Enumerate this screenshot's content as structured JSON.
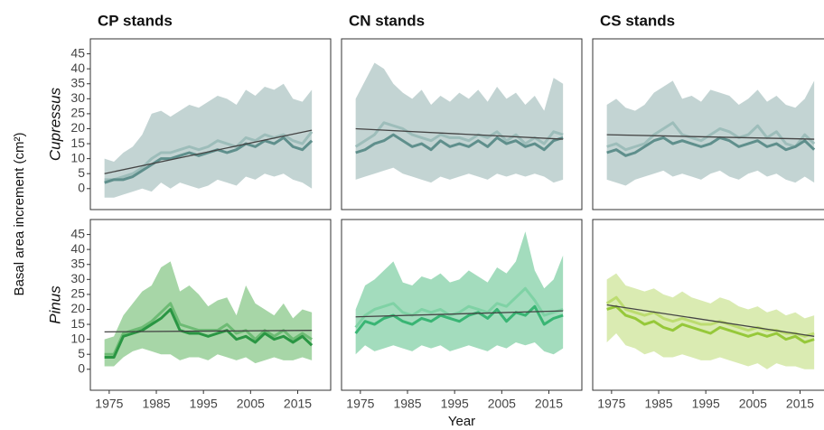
{
  "ylabel": "Basal area increment (cm²)",
  "xlabel": "Year",
  "chart_data": [
    {
      "type": "line",
      "title": "CP stands",
      "row_label": "Cupressus",
      "x": [
        1974,
        1976,
        1978,
        1980,
        1982,
        1984,
        1986,
        1988,
        1990,
        1992,
        1994,
        1996,
        1998,
        2000,
        2002,
        2004,
        2006,
        2008,
        2010,
        2012,
        2014,
        2016,
        2018
      ],
      "xlim": [
        1971,
        2022
      ],
      "ylim": [
        -7,
        50
      ],
      "yticks": [
        0,
        5,
        10,
        15,
        20,
        25,
        30,
        35,
        40,
        45
      ],
      "band": {
        "color": "#b9cccb",
        "lower": [
          -3,
          -3,
          -2,
          -1,
          0,
          -1,
          2,
          0,
          2,
          1,
          0,
          1,
          3,
          2,
          1,
          4,
          3,
          5,
          4,
          5,
          3,
          2,
          0
        ],
        "upper": [
          10,
          9,
          12,
          14,
          18,
          25,
          26,
          24,
          26,
          28,
          27,
          29,
          31,
          30,
          28,
          33,
          31,
          34,
          33,
          35,
          30,
          29,
          33
        ]
      },
      "series": [
        {
          "color": "#9dbdba",
          "values": [
            3,
            3,
            4,
            5,
            7,
            10,
            12,
            12,
            13,
            14,
            13,
            14,
            16,
            15,
            14,
            17,
            16,
            18,
            17,
            18,
            16,
            15,
            19
          ]
        },
        {
          "color": "#5f8f8c",
          "values": [
            2,
            3,
            3,
            4,
            6,
            8,
            10,
            10,
            11,
            12,
            11,
            12,
            13,
            12,
            13,
            15,
            14,
            16,
            15,
            17,
            14,
            13,
            16
          ]
        }
      ],
      "trend": {
        "color": "#444444",
        "x": [
          1974,
          2018
        ],
        "values": [
          5,
          19.5
        ]
      }
    },
    {
      "type": "line",
      "title": "CN stands",
      "x": [
        1974,
        1976,
        1978,
        1980,
        1982,
        1984,
        1986,
        1988,
        1990,
        1992,
        1994,
        1996,
        1998,
        2000,
        2002,
        2004,
        2006,
        2008,
        2010,
        2012,
        2014,
        2016,
        2018
      ],
      "xlim": [
        1971,
        2022
      ],
      "ylim": [
        -7,
        50
      ],
      "band": {
        "color": "#b9cccb",
        "lower": [
          3,
          4,
          5,
          6,
          7,
          5,
          4,
          3,
          2,
          4,
          3,
          4,
          5,
          4,
          3,
          5,
          4,
          5,
          4,
          5,
          4,
          2,
          3
        ],
        "upper": [
          30,
          36,
          42,
          40,
          35,
          32,
          30,
          33,
          28,
          31,
          29,
          32,
          30,
          33,
          29,
          34,
          30,
          32,
          28,
          31,
          26,
          37,
          35
        ]
      },
      "series": [
        {
          "color": "#9dbdba",
          "values": [
            14,
            16,
            18,
            22,
            21,
            20,
            18,
            17,
            16,
            18,
            17,
            17,
            16,
            18,
            17,
            19,
            16,
            18,
            15,
            17,
            15,
            19,
            18
          ]
        },
        {
          "color": "#5f8f8c",
          "values": [
            12,
            13,
            15,
            16,
            18,
            16,
            14,
            15,
            13,
            16,
            14,
            15,
            14,
            16,
            14,
            17,
            15,
            16,
            14,
            15,
            13,
            16,
            17
          ]
        }
      ],
      "trend": {
        "color": "#444444",
        "x": [
          1974,
          2018
        ],
        "values": [
          20,
          16.5
        ]
      }
    },
    {
      "type": "line",
      "title": "CS stands",
      "x": [
        1974,
        1976,
        1978,
        1980,
        1982,
        1984,
        1986,
        1988,
        1990,
        1992,
        1994,
        1996,
        1998,
        2000,
        2002,
        2004,
        2006,
        2008,
        2010,
        2012,
        2014,
        2016,
        2018
      ],
      "xlim": [
        1971,
        2022
      ],
      "ylim": [
        -7,
        50
      ],
      "band": {
        "color": "#b9cccb",
        "lower": [
          3,
          2,
          1,
          3,
          4,
          5,
          6,
          4,
          5,
          4,
          3,
          5,
          6,
          4,
          3,
          5,
          6,
          4,
          5,
          3,
          2,
          4,
          2
        ],
        "upper": [
          28,
          30,
          27,
          26,
          28,
          32,
          34,
          36,
          30,
          31,
          29,
          33,
          32,
          31,
          28,
          30,
          33,
          29,
          31,
          28,
          27,
          30,
          36
        ]
      },
      "series": [
        {
          "color": "#9dbdba",
          "values": [
            14,
            15,
            13,
            14,
            15,
            18,
            20,
            22,
            18,
            17,
            16,
            18,
            20,
            19,
            17,
            18,
            21,
            17,
            19,
            15,
            14,
            18,
            15
          ]
        },
        {
          "color": "#5f8f8c",
          "values": [
            12,
            13,
            11,
            12,
            14,
            16,
            17,
            15,
            16,
            15,
            14,
            15,
            17,
            16,
            14,
            15,
            16,
            14,
            15,
            13,
            14,
            16,
            13
          ]
        }
      ],
      "trend": {
        "color": "#444444",
        "x": [
          1974,
          2018
        ],
        "values": [
          18,
          16.5
        ]
      }
    },
    {
      "type": "line",
      "row_label": "Pinus",
      "x": [
        1974,
        1976,
        1978,
        1980,
        1982,
        1984,
        1986,
        1988,
        1990,
        1992,
        1994,
        1996,
        1998,
        2000,
        2002,
        2004,
        2006,
        2008,
        2010,
        2012,
        2014,
        2016,
        2018
      ],
      "xlim": [
        1971,
        2022
      ],
      "ylim": [
        -7,
        50
      ],
      "xticks": [
        1975,
        1985,
        1995,
        2005,
        2015
      ],
      "yticks": [
        0,
        5,
        10,
        15,
        20,
        25,
        30,
        35,
        40,
        45
      ],
      "band": {
        "color": "#98cf98",
        "lower": [
          1,
          1,
          4,
          6,
          7,
          6,
          5,
          5,
          3,
          4,
          4,
          3,
          5,
          4,
          3,
          4,
          2,
          3,
          4,
          3,
          3,
          4,
          3
        ],
        "upper": [
          10,
          11,
          18,
          22,
          26,
          28,
          34,
          36,
          26,
          28,
          25,
          21,
          23,
          24,
          18,
          28,
          22,
          20,
          18,
          22,
          17,
          20,
          19
        ]
      },
      "series": [
        {
          "color": "#6dbb74",
          "values": [
            5,
            5,
            12,
            13,
            14,
            16,
            19,
            22,
            15,
            14,
            13,
            13,
            13,
            15,
            12,
            13,
            10,
            13,
            11,
            13,
            10,
            12,
            10
          ]
        },
        {
          "color": "#2a9643",
          "values": [
            4,
            4,
            11,
            12,
            13,
            15,
            17,
            20,
            13,
            12,
            12,
            11,
            12,
            13,
            10,
            11,
            9,
            12,
            10,
            11,
            9,
            11,
            8
          ]
        }
      ],
      "trend": {
        "color": "#444444",
        "x": [
          1974,
          2018
        ],
        "values": [
          12.5,
          13
        ]
      }
    },
    {
      "type": "line",
      "x": [
        1974,
        1976,
        1978,
        1980,
        1982,
        1984,
        1986,
        1988,
        1990,
        1992,
        1994,
        1996,
        1998,
        2000,
        2002,
        2004,
        2006,
        2008,
        2010,
        2012,
        2014,
        2016,
        2018
      ],
      "xlim": [
        1971,
        2022
      ],
      "ylim": [
        -7,
        50
      ],
      "xticks": [
        1975,
        1985,
        1995,
        2005,
        2015
      ],
      "band": {
        "color": "#93d6b1",
        "lower": [
          5,
          8,
          6,
          7,
          8,
          7,
          6,
          8,
          7,
          8,
          6,
          7,
          8,
          7,
          6,
          8,
          7,
          9,
          8,
          9,
          6,
          5,
          7
        ],
        "upper": [
          20,
          28,
          30,
          33,
          36,
          29,
          28,
          31,
          30,
          32,
          29,
          30,
          33,
          31,
          29,
          34,
          32,
          36,
          46,
          33,
          27,
          30,
          38
        ]
      },
      "series": [
        {
          "color": "#7fd2a5",
          "values": [
            14,
            18,
            20,
            21,
            22,
            19,
            18,
            20,
            19,
            20,
            18,
            19,
            21,
            20,
            19,
            22,
            21,
            24,
            27,
            23,
            18,
            19,
            20
          ]
        },
        {
          "color": "#39b574",
          "values": [
            12,
            16,
            15,
            17,
            18,
            16,
            15,
            17,
            16,
            18,
            17,
            16,
            18,
            19,
            17,
            20,
            16,
            19,
            18,
            21,
            15,
            17,
            18
          ]
        }
      ],
      "trend": {
        "color": "#444444",
        "x": [
          1974,
          2018
        ],
        "values": [
          17.5,
          19.5
        ]
      }
    },
    {
      "type": "line",
      "x": [
        1974,
        1976,
        1978,
        1980,
        1982,
        1984,
        1986,
        1988,
        1990,
        1992,
        1994,
        1996,
        1998,
        2000,
        2002,
        2004,
        2006,
        2008,
        2010,
        2012,
        2014,
        2016,
        2018
      ],
      "xlim": [
        1971,
        2022
      ],
      "ylim": [
        -7,
        50
      ],
      "xticks": [
        1975,
        1985,
        1995,
        2005,
        2015
      ],
      "band": {
        "color": "#d4e8a4",
        "lower": [
          9,
          12,
          8,
          7,
          5,
          6,
          4,
          4,
          5,
          4,
          3,
          3,
          4,
          3,
          2,
          1,
          2,
          0,
          2,
          1,
          1,
          0,
          0
        ],
        "upper": [
          30,
          32,
          28,
          27,
          26,
          27,
          25,
          24,
          26,
          24,
          23,
          22,
          24,
          23,
          21,
          20,
          21,
          19,
          20,
          18,
          19,
          17,
          18
        ]
      },
      "series": [
        {
          "color": "#bcdc70",
          "values": [
            22,
            24,
            20,
            19,
            18,
            19,
            17,
            16,
            17,
            16,
            15,
            15,
            16,
            15,
            14,
            13,
            14,
            13,
            13,
            12,
            12,
            11,
            12
          ]
        },
        {
          "color": "#96c83a",
          "values": [
            20,
            21,
            18,
            17,
            15,
            16,
            14,
            13,
            15,
            14,
            13,
            12,
            14,
            13,
            12,
            11,
            12,
            11,
            12,
            10,
            11,
            9,
            10
          ]
        }
      ],
      "trend": {
        "color": "#444444",
        "x": [
          1974,
          2018
        ],
        "values": [
          21.5,
          11
        ]
      }
    }
  ]
}
